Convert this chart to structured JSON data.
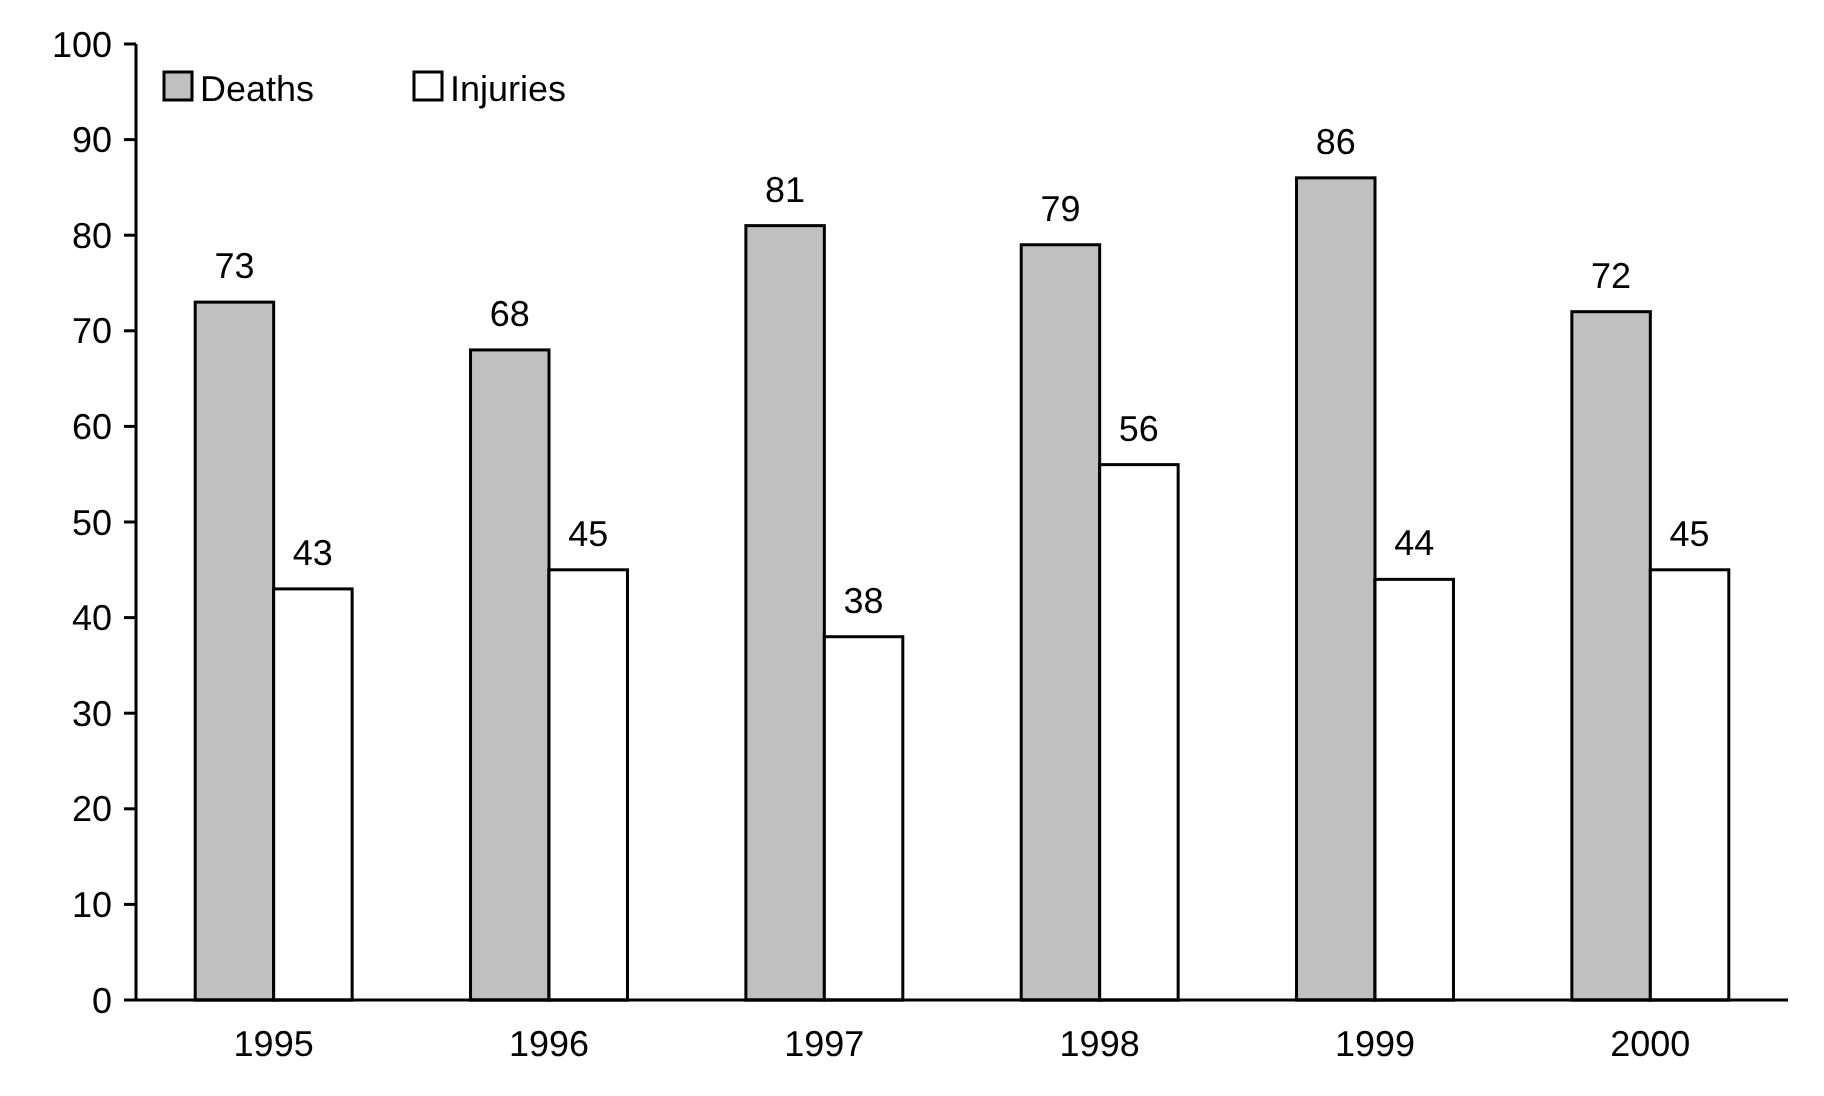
{
  "chart_data": {
    "type": "bar",
    "categories": [
      "1995",
      "1996",
      "1997",
      "1998",
      "1999",
      "2000"
    ],
    "series": [
      {
        "name": "Deaths",
        "color": "#c0c0c0",
        "values": [
          73,
          68,
          81,
          79,
          86,
          72
        ]
      },
      {
        "name": "Injuries",
        "color": "#ffffff",
        "values": [
          43,
          45,
          38,
          56,
          44,
          45
        ]
      }
    ],
    "ylim": [
      0,
      100
    ],
    "yticks": [
      0,
      10,
      20,
      30,
      40,
      50,
      60,
      70,
      80,
      90,
      100
    ],
    "grid": false,
    "legend": "top left",
    "data_labels": true
  }
}
